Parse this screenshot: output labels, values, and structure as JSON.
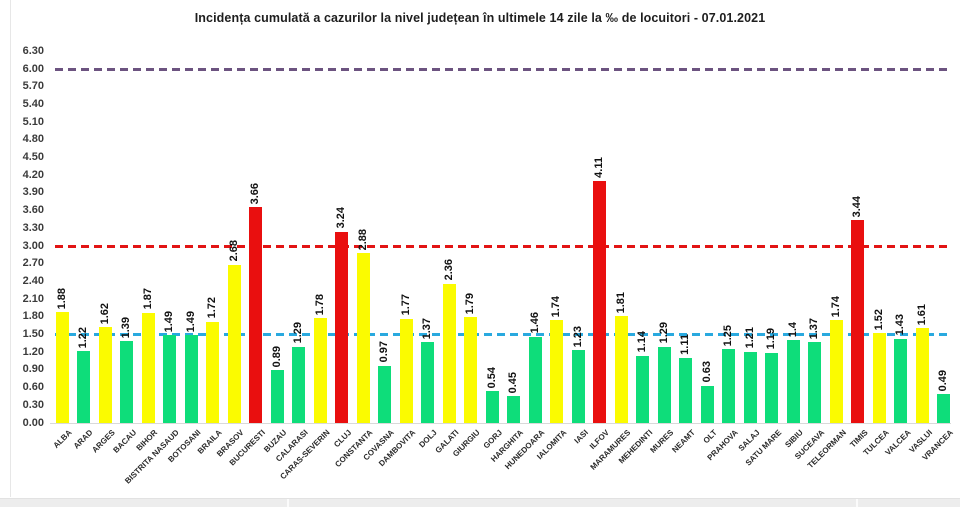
{
  "chart_data": {
    "type": "bar",
    "title": "Incidența cumulată a cazurilor la nivel județean în ultimele 14 zile la ‰ de locuitori - 07.01.2021",
    "categories": [
      "ALBA",
      "ARAD",
      "ARGES",
      "BACAU",
      "BIHOR",
      "BISTRITA NASAUD",
      "BOTOSANI",
      "BRAILA",
      "BRASOV",
      "BUCURESTI",
      "BUZAU",
      "CALARASI",
      "CARAS-SEVERIN",
      "CLUJ",
      "CONSTANTA",
      "COVASNA",
      "DAMBOVITA",
      "DOLJ",
      "GALATI",
      "GIURGIU",
      "GORJ",
      "HARGHITA",
      "HUNEDOARA",
      "IALOMITA",
      "IASI",
      "ILFOV",
      "MARAMURES",
      "MEHEDINTI",
      "MURES",
      "NEAMT",
      "OLT",
      "PRAHOVA",
      "SALAJ",
      "SATU MARE",
      "SIBIU",
      "SUCEAVA",
      "TELEORMAN",
      "TIMIS",
      "TULCEA",
      "VALCEA",
      "VASLUI",
      "VRANCEA"
    ],
    "values": [
      1.88,
      1.22,
      1.62,
      1.39,
      1.87,
      1.49,
      1.49,
      1.72,
      2.68,
      3.66,
      0.89,
      1.29,
      1.78,
      3.24,
      2.88,
      0.97,
      1.77,
      1.37,
      2.36,
      1.79,
      0.54,
      0.45,
      1.46,
      1.74,
      1.23,
      4.11,
      1.81,
      1.14,
      1.29,
      1.11,
      0.63,
      1.25,
      1.21,
      1.19,
      1.4,
      1.37,
      1.74,
      3.44,
      1.52,
      1.43,
      1.61,
      0.49
    ],
    "value_labels": [
      "1.88",
      "1.22",
      "1.62",
      "1.39",
      "1.87",
      "1.49",
      "1.49",
      "1.72",
      "2.68",
      "3.66",
      "0.89",
      "1.29",
      "1.78",
      "3.24",
      "2.88",
      "0.97",
      "1.77",
      "1.37",
      "2.36",
      "1.79",
      "0.54",
      "0.45",
      "1.46",
      "1.74",
      "1.23",
      "4.11",
      "1.81",
      "1.14",
      "1.29",
      "1.11",
      "0.63",
      "1.25",
      "1.21",
      "1.19",
      "1.4",
      "1.37",
      "1.74",
      "3.44",
      "1.52",
      "1.43",
      "1.61",
      "0.49"
    ],
    "bar_colors": [
      "yellow",
      "green",
      "yellow",
      "green",
      "yellow",
      "green",
      "green",
      "yellow",
      "yellow",
      "red",
      "green",
      "green",
      "yellow",
      "red",
      "yellow",
      "green",
      "yellow",
      "green",
      "yellow",
      "yellow",
      "green",
      "green",
      "green",
      "yellow",
      "green",
      "red",
      "yellow",
      "green",
      "green",
      "green",
      "green",
      "green",
      "green",
      "green",
      "green",
      "green",
      "yellow",
      "red",
      "yellow",
      "green",
      "yellow",
      "green"
    ],
    "colors": {
      "green": "#0edd7a",
      "yellow": "#fbfb00",
      "red": "#e90f0f"
    },
    "xlabel": "",
    "ylabel": "",
    "ylim": [
      0,
      6.3
    ],
    "ytick_step": 0.3,
    "ytick_labels": [
      "0.00",
      "0.30",
      "0.60",
      "0.90",
      "1.20",
      "1.50",
      "1.80",
      "2.10",
      "2.40",
      "2.70",
      "3.00",
      "3.30",
      "3.60",
      "3.90",
      "4.20",
      "4.50",
      "4.80",
      "5.10",
      "5.40",
      "5.70",
      "6.00",
      "6.30"
    ],
    "reference_lines": [
      {
        "value": 6.0,
        "color": "#6c5380",
        "name": "threshold-6.00"
      },
      {
        "value": 3.0,
        "color": "#e21414",
        "name": "threshold-3.00"
      },
      {
        "value": 1.5,
        "color": "#29a9df",
        "name": "threshold-1.50"
      }
    ],
    "grid": "off",
    "legend": "none"
  }
}
